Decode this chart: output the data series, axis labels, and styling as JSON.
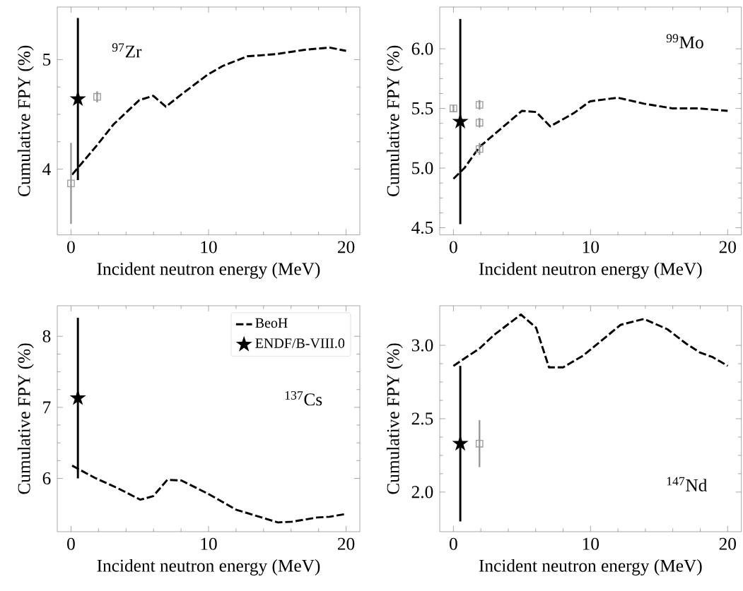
{
  "chart_data": [
    {
      "type": "line",
      "xlabel": "Incident neutron energy (MeV)",
      "ylabel": "Cumulative FPY (%)",
      "xlim": [
        -1,
        21
      ],
      "xticks": [
        0,
        10,
        20
      ],
      "ylim": [
        3.4,
        5.48
      ],
      "yticks": [
        4,
        5
      ],
      "annotations": [
        "$^{97}$Zr"
      ],
      "series": [
        {
          "color": "#000000",
          "line_style": "dashed",
          "marker": "none",
          "x": [
            0.08,
            1.9,
            3.1,
            4.96,
            5.98,
            6.9,
            8.0,
            9.9,
            11.0,
            12.8,
            14.9,
            17.0,
            18.8,
            20
          ],
          "values": [
            3.95,
            4.22,
            4.41,
            4.63,
            4.67,
            4.57,
            4.68,
            4.86,
            4.94,
            5.03,
            5.05,
            5.09,
            5.11,
            5.08
          ]
        },
        {
          "type": "scatter",
          "color": "#000000",
          "marker": "star",
          "x": [
            0.5
          ],
          "values": [
            4.64
          ],
          "errors": [
            0.74
          ]
        },
        {
          "type": "scatter",
          "color": "#999999",
          "marker": "square",
          "x": [
            0,
            1.9
          ],
          "values": [
            3.87,
            4.66
          ],
          "errors": [
            0.37,
            0.05
          ]
        }
      ]
    },
    {
      "type": "line",
      "xlabel": "Incident neutron energy (MeV)",
      "ylabel": "Cumulative FPY (%)",
      "xlim": [
        -1,
        21
      ],
      "xticks": [
        0,
        10,
        20
      ],
      "ylim": [
        4.44,
        6.35
      ],
      "yticks": [
        {
          "value": 4.5,
          "label": "4.5"
        },
        {
          "value": 5,
          "label": "5.0"
        },
        {
          "value": 5.5,
          "label": "5.5"
        },
        {
          "value": 6,
          "label": "6.0"
        }
      ],
      "annotations": [
        "$^{99}$Mo"
      ],
      "series": [
        {
          "color": "#000000",
          "line_style": "dashed",
          "marker": "none",
          "x": [
            0,
            0.8,
            1.92,
            2.95,
            5.0,
            6.03,
            7.06,
            8.77,
            9.97,
            12.0,
            13.9,
            16.0,
            17.9,
            20
          ],
          "values": [
            4.91,
            5.0,
            5.18,
            5.28,
            5.48,
            5.47,
            5.35,
            5.46,
            5.56,
            5.59,
            5.54,
            5.5,
            5.5,
            5.48
          ]
        },
        {
          "type": "scatter",
          "color": "#000000",
          "marker": "star",
          "x": [
            0.5
          ],
          "values": [
            5.39
          ],
          "errors": [
            0.86
          ]
        },
        {
          "type": "scatter",
          "color": "#999999",
          "marker": "square",
          "x": [
            0,
            1.9,
            1.9,
            1.9
          ],
          "values": [
            5.5,
            5.53,
            5.38,
            5.16
          ],
          "errors": [
            0.03,
            0.04,
            0.04,
            0.05
          ]
        }
      ]
    },
    {
      "type": "line",
      "xlabel": "Incident neutron energy (MeV)",
      "ylabel": "Cumulative FPY (%)",
      "xlim": [
        -1,
        21
      ],
      "xticks": [
        0,
        10,
        20
      ],
      "ylim": [
        5.25,
        8.43
      ],
      "yticks": [
        6,
        7,
        8
      ],
      "annotations": [
        "$^{137}$Cs"
      ],
      "legend": "top right",
      "series": [
        {
          "name": "BeoH",
          "color": "#000000",
          "line_style": "dashed",
          "marker": "none",
          "x": [
            0.08,
            1.71,
            3.42,
            5.04,
            5.98,
            7.0,
            8.03,
            9.9,
            12.0,
            15.04,
            16.07,
            17.9,
            18.8,
            20
          ],
          "values": [
            6.18,
            6.01,
            5.86,
            5.7,
            5.75,
            5.98,
            5.97,
            5.79,
            5.56,
            5.38,
            5.39,
            5.45,
            5.46,
            5.5
          ]
        },
        {
          "type": "scatter",
          "name": "ENDF/B-VIII.0",
          "color": "#000000",
          "marker": "star",
          "x": [
            0.5
          ],
          "values": [
            7.13
          ],
          "errors": [
            1.13
          ]
        }
      ]
    },
    {
      "type": "line",
      "xlabel": "Incident neutron energy (MeV)",
      "ylabel": "Cumulative FPY (%)",
      "xlim": [
        -1,
        21
      ],
      "xticks": [
        0,
        10,
        20
      ],
      "ylim": [
        1.73,
        3.27
      ],
      "yticks": [
        {
          "value": 2,
          "label": "2.0"
        },
        {
          "value": 2.5,
          "label": "2.5"
        },
        {
          "value": 3,
          "label": "3.0"
        }
      ],
      "annotations": [
        "$^{147}$Nd"
      ],
      "series": [
        {
          "color": "#000000",
          "line_style": "dashed",
          "marker": "none",
          "x": [
            0,
            1.92,
            2.95,
            4.92,
            6.03,
            6.97,
            8.0,
            9.46,
            12.2,
            13.9,
            15.6,
            17.0,
            18.0,
            18.9,
            20
          ],
          "values": [
            2.86,
            2.98,
            3.07,
            3.21,
            3.12,
            2.85,
            2.85,
            2.93,
            3.14,
            3.18,
            3.11,
            3.01,
            2.95,
            2.92,
            2.86
          ]
        },
        {
          "type": "scatter",
          "color": "#000000",
          "marker": "star",
          "x": [
            0.5
          ],
          "values": [
            2.33
          ],
          "errors": [
            0.53
          ]
        },
        {
          "type": "scatter",
          "color": "#999999",
          "marker": "square",
          "x": [
            1.9
          ],
          "values": [
            2.33
          ],
          "errors": [
            0.16
          ]
        }
      ]
    }
  ]
}
